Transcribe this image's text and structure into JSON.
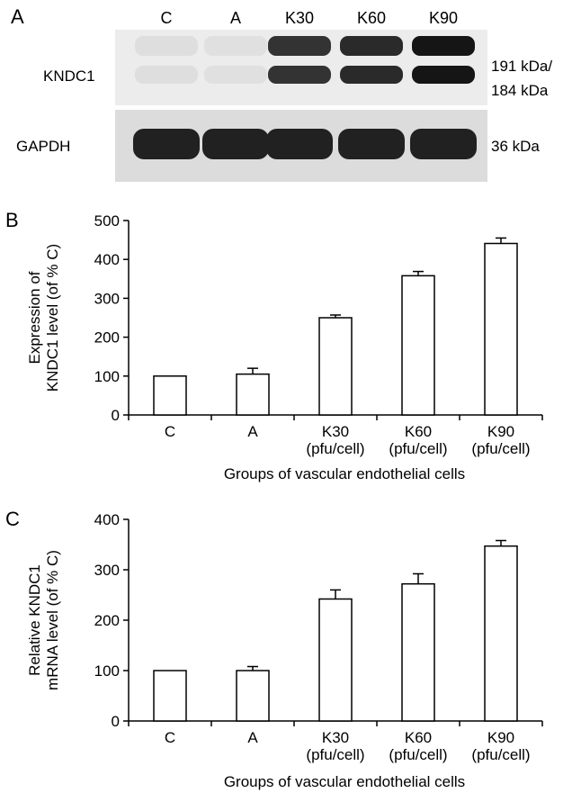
{
  "panel_a": {
    "letter": "A",
    "lanes": [
      "C",
      "A",
      "K30",
      "K60",
      "K90"
    ],
    "blots": [
      {
        "name": "KNDC1",
        "size_label_1": "191 kDa/",
        "size_label_2": "184 kDa",
        "band_intensity": [
          0.06,
          0.05,
          0.82,
          0.86,
          0.95
        ]
      },
      {
        "name": "GAPDH",
        "size_label_1": "36 kDa",
        "band_intensity": [
          0.9,
          0.9,
          0.9,
          0.9,
          0.9
        ]
      }
    ]
  },
  "chart_data": [
    {
      "panel": "B",
      "type": "bar",
      "categories": [
        [
          "C"
        ],
        [
          "A"
        ],
        [
          "K30",
          "(pfu/cell)"
        ],
        [
          "K60",
          "(pfu/cell)"
        ],
        [
          "K90",
          "(pfu/cell)"
        ]
      ],
      "values": [
        100,
        105,
        250,
        358,
        441
      ],
      "errors": [
        0,
        15,
        7,
        11,
        14
      ],
      "ylim": [
        0,
        500
      ],
      "yticks": [
        0,
        100,
        200,
        300,
        400,
        500
      ],
      "ylabel": [
        "Expression of",
        "KNDC1 level (of % C)"
      ],
      "xlabel": "Groups of vascular endothelial cells"
    },
    {
      "panel": "C",
      "type": "bar",
      "categories": [
        [
          "C"
        ],
        [
          "A"
        ],
        [
          "K30",
          "(pfu/cell)"
        ],
        [
          "K60",
          "(pfu/cell)"
        ],
        [
          "K90",
          "(pfu/cell)"
        ]
      ],
      "values": [
        100,
        100,
        242,
        272,
        347
      ],
      "errors": [
        0,
        8,
        18,
        20,
        11
      ],
      "ylim": [
        0,
        400
      ],
      "yticks": [
        0,
        100,
        200,
        300,
        400
      ],
      "ylabel": [
        "Relative KNDC1",
        "mRNA level (of % C)"
      ],
      "xlabel": "Groups of vascular endothelial cells"
    }
  ]
}
